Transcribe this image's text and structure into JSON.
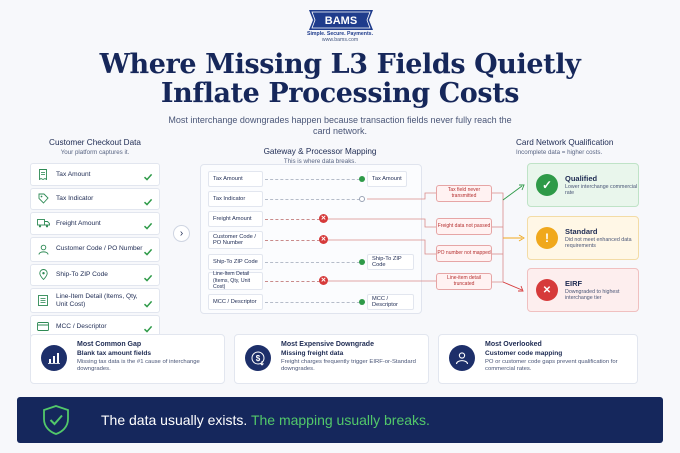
{
  "header": {
    "logo_text": "BAMS",
    "tagline": "Simple. Secure. Payments.",
    "url": "www.bams.com",
    "title_line1": "Where Missing L3 Fields Quietly",
    "title_line2": "Inflate Processing Costs",
    "subtitle": "Most interchange downgrades happen because transaction fields never fully reach the card network."
  },
  "left": {
    "heading": "Customer Checkout Data",
    "subheading": "Your platform captures it.",
    "items": [
      {
        "label": "Tax Amount",
        "icon": "receipt-icon"
      },
      {
        "label": "Tax Indicator",
        "icon": "tag-icon"
      },
      {
        "label": "Freight Amount",
        "icon": "truck-icon"
      },
      {
        "label": "Customer Code / PO Number",
        "icon": "user-icon"
      },
      {
        "label": "Ship-To ZIP Code",
        "icon": "location-pin-icon"
      },
      {
        "label": "Line-Item Detail (Items, Qty, Unit Cost)",
        "icon": "list-icon"
      },
      {
        "label": "MCC / Descriptor",
        "icon": "card-icon"
      }
    ],
    "arrow": "›"
  },
  "middle": {
    "heading": "Gateway & Processor Mapping",
    "subheading": "This is where data breaks.",
    "rows": [
      {
        "source": "Tax Amount",
        "status": "ok",
        "dest": "Tax Amount"
      },
      {
        "source": "Tax Indicator",
        "status": "empty",
        "dest": ""
      },
      {
        "source": "Freight Amount",
        "status": "error",
        "dest": ""
      },
      {
        "source": "Customer Code / PO Number",
        "status": "error",
        "dest": ""
      },
      {
        "source": "Ship-To ZIP Code",
        "status": "ok",
        "dest": "Ship-To ZIP Code"
      },
      {
        "source": "Line-Item Detail (Items, Qty, Unit Cost)",
        "status": "error",
        "dest": ""
      },
      {
        "source": "MCC / Descriptor",
        "status": "ok",
        "dest": "MCC / Descriptor"
      }
    ],
    "issues": [
      "Tax field never transmitted",
      "Freight data not passed",
      "PO number not mapped",
      "Line-item detail truncated"
    ],
    "x_glyph": "✕"
  },
  "right": {
    "heading": "Card Network Qualification",
    "subheading": "Incomplete data = higher costs.",
    "cards": [
      {
        "title": "Qualified",
        "desc": "Lower interchange commercial rate",
        "glyph": "✓",
        "color": "#2e9a48",
        "bg": "#e9f6ec",
        "border": "#bfe3c7"
      },
      {
        "title": "Standard",
        "desc": "Did not meet enhanced data requirements",
        "glyph": "!",
        "color": "#f0a81c",
        "bg": "#fff7e6",
        "border": "#f3dca6"
      },
      {
        "title": "EIRF",
        "desc": "Downgraded to highest interchange tier",
        "glyph": "✕",
        "color": "#d63a3a",
        "bg": "#fdeeee",
        "border": "#f0c0c0"
      }
    ]
  },
  "bottom": [
    {
      "heading": "Most Common Gap",
      "subheading": "Blank tax amount fields",
      "desc": "Missing tax data is the #1 cause of interchange downgrades.",
      "icon": "bar-chart-icon"
    },
    {
      "heading": "Most Expensive Downgrade",
      "subheading": "Missing freight data",
      "desc": "Freight charges frequently trigger EIRF-or-Standard downgrades.",
      "icon": "dollar-down-icon"
    },
    {
      "heading": "Most Overlooked",
      "subheading": "Customer code mapping",
      "desc": "PO or customer code gaps prevent qualification for commercial rates.",
      "icon": "person-icon"
    }
  ],
  "banner": {
    "text_white": "The data usually exists.",
    "text_green": "The mapping usually breaks.",
    "icon": "shield-check-icon"
  },
  "colors": {
    "navy": "#15275c",
    "green": "#2e9a48",
    "amber": "#f0a81c",
    "red": "#d63a3a"
  }
}
